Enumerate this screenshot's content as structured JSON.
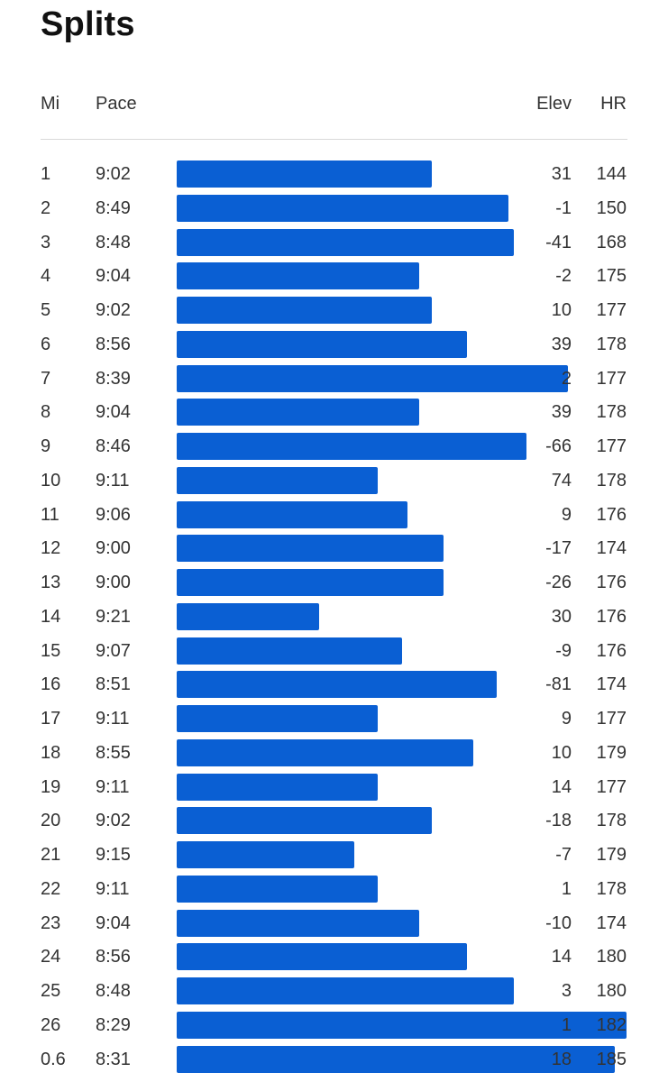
{
  "title": "Splits",
  "columns": {
    "mile": "Mi",
    "pace": "Pace",
    "elev": "Elev",
    "hr": "HR"
  },
  "colors": {
    "bar": "#0a5fd3",
    "divider": "#d9d9d9",
    "text": "#333333"
  },
  "splits": [
    {
      "mile": "1",
      "pace": "9:02",
      "elev": "31",
      "hr": "144"
    },
    {
      "mile": "2",
      "pace": "8:49",
      "elev": "-1",
      "hr": "150"
    },
    {
      "mile": "3",
      "pace": "8:48",
      "elev": "-41",
      "hr": "168"
    },
    {
      "mile": "4",
      "pace": "9:04",
      "elev": "-2",
      "hr": "175"
    },
    {
      "mile": "5",
      "pace": "9:02",
      "elev": "10",
      "hr": "177"
    },
    {
      "mile": "6",
      "pace": "8:56",
      "elev": "39",
      "hr": "178"
    },
    {
      "mile": "7",
      "pace": "8:39",
      "elev": "2",
      "hr": "177"
    },
    {
      "mile": "8",
      "pace": "9:04",
      "elev": "39",
      "hr": "178"
    },
    {
      "mile": "9",
      "pace": "8:46",
      "elev": "-66",
      "hr": "177"
    },
    {
      "mile": "10",
      "pace": "9:11",
      "elev": "74",
      "hr": "178"
    },
    {
      "mile": "11",
      "pace": "9:06",
      "elev": "9",
      "hr": "176"
    },
    {
      "mile": "12",
      "pace": "9:00",
      "elev": "-17",
      "hr": "174"
    },
    {
      "mile": "13",
      "pace": "9:00",
      "elev": "-26",
      "hr": "176"
    },
    {
      "mile": "14",
      "pace": "9:21",
      "elev": "30",
      "hr": "176"
    },
    {
      "mile": "15",
      "pace": "9:07",
      "elev": "-9",
      "hr": "176"
    },
    {
      "mile": "16",
      "pace": "8:51",
      "elev": "-81",
      "hr": "174"
    },
    {
      "mile": "17",
      "pace": "9:11",
      "elev": "9",
      "hr": "177"
    },
    {
      "mile": "18",
      "pace": "8:55",
      "elev": "10",
      "hr": "179"
    },
    {
      "mile": "19",
      "pace": "9:11",
      "elev": "14",
      "hr": "177"
    },
    {
      "mile": "20",
      "pace": "9:02",
      "elev": "-18",
      "hr": "178"
    },
    {
      "mile": "21",
      "pace": "9:15",
      "elev": "-7",
      "hr": "179"
    },
    {
      "mile": "22",
      "pace": "9:11",
      "elev": "1",
      "hr": "178"
    },
    {
      "mile": "23",
      "pace": "9:04",
      "elev": "-10",
      "hr": "174"
    },
    {
      "mile": "24",
      "pace": "8:56",
      "elev": "14",
      "hr": "180"
    },
    {
      "mile": "25",
      "pace": "8:48",
      "elev": "3",
      "hr": "180"
    },
    {
      "mile": "26",
      "pace": "8:29",
      "elev": "1",
      "hr": "182"
    },
    {
      "mile": "0.6",
      "pace": "8:31",
      "elev": "18",
      "hr": "185"
    }
  ]
}
